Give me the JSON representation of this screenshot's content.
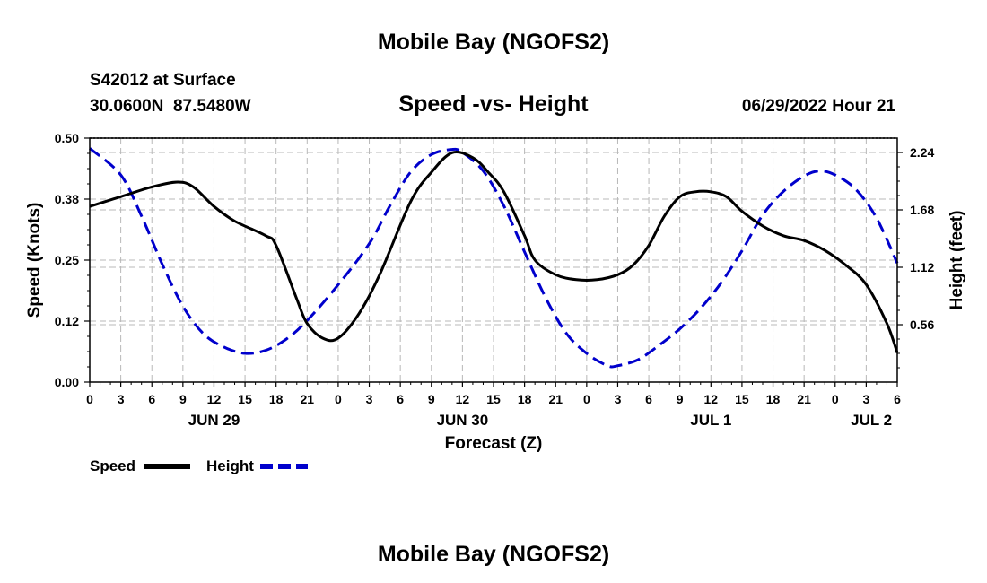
{
  "page": {
    "title": "Mobile Bay (NGOFS2)",
    "footer_title": "Mobile Bay (NGOFS2)",
    "station_line": "S42012 at Surface",
    "coords_line": "30.0600N  87.5480W",
    "subtitle": "Speed -vs- Height",
    "datetime": "06/29/2022 Hour 21"
  },
  "chart_data": {
    "type": "line",
    "title": "Speed -vs- Height",
    "xlabel": "Forecast (Z)",
    "ylabel_left": "Speed (Knots)",
    "ylabel_right": "Height (feet)",
    "x_unit": "hours since Jun 29 00Z",
    "xlim": [
      0,
      78
    ],
    "ylim_left": [
      0,
      0.5
    ],
    "ylim_right": [
      0,
      2.38
    ],
    "left_ticks": [
      {
        "value": 0,
        "label": "0.00"
      },
      {
        "value": 0.125,
        "label": "0.12"
      },
      {
        "value": 0.25,
        "label": "0.25"
      },
      {
        "value": 0.375,
        "label": "0.38"
      },
      {
        "value": 0.5,
        "label": "0.50"
      }
    ],
    "right_ticks": [
      {
        "value": 0.56,
        "label": "0.56"
      },
      {
        "value": 1.12,
        "label": "1.12"
      },
      {
        "value": 1.68,
        "label": "1.68"
      },
      {
        "value": 2.24,
        "label": "2.24"
      }
    ],
    "x_ticks": [
      {
        "value": 0,
        "label": "0"
      },
      {
        "value": 3,
        "label": "3"
      },
      {
        "value": 6,
        "label": "6"
      },
      {
        "value": 9,
        "label": "9"
      },
      {
        "value": 12,
        "label": "12"
      },
      {
        "value": 15,
        "label": "15"
      },
      {
        "value": 18,
        "label": "18"
      },
      {
        "value": 21,
        "label": "21"
      },
      {
        "value": 24,
        "label": "0"
      },
      {
        "value": 27,
        "label": "3"
      },
      {
        "value": 30,
        "label": "6"
      },
      {
        "value": 33,
        "label": "9"
      },
      {
        "value": 36,
        "label": "12"
      },
      {
        "value": 39,
        "label": "15"
      },
      {
        "value": 42,
        "label": "18"
      },
      {
        "value": 45,
        "label": "21"
      },
      {
        "value": 48,
        "label": "0"
      },
      {
        "value": 51,
        "label": "3"
      },
      {
        "value": 54,
        "label": "6"
      },
      {
        "value": 57,
        "label": "9"
      },
      {
        "value": 60,
        "label": "12"
      },
      {
        "value": 63,
        "label": "15"
      },
      {
        "value": 66,
        "label": "18"
      },
      {
        "value": 69,
        "label": "21"
      },
      {
        "value": 72,
        "label": "0"
      },
      {
        "value": 75,
        "label": "3"
      },
      {
        "value": 78,
        "label": "6"
      }
    ],
    "date_labels": [
      {
        "x": 12,
        "label": "JUN 29"
      },
      {
        "x": 36,
        "label": "JUN 30"
      },
      {
        "x": 60,
        "label": "JUL 1"
      },
      {
        "x": 75.5,
        "label": "JUL 2"
      }
    ],
    "legend": [
      {
        "name": "Speed",
        "color": "#000000"
      },
      {
        "name": "Height",
        "color": "#0000cc"
      }
    ],
    "series": [
      {
        "name": "Speed",
        "axis": "left",
        "color": "#000000",
        "style": "solid",
        "x": [
          0,
          3,
          6,
          8.5,
          10,
          12,
          14,
          17,
          18,
          20,
          21,
          22.5,
          24,
          26,
          28,
          31,
          33,
          35,
          37,
          38.5,
          40,
          42,
          43,
          45,
          47,
          49,
          51,
          52.5,
          54,
          55.5,
          57,
          58.5,
          60,
          61.5,
          63,
          65,
          67,
          69,
          71,
          73,
          75,
          77,
          78
        ],
        "values": [
          0.36,
          0.38,
          0.4,
          0.41,
          0.4,
          0.36,
          0.33,
          0.3,
          0.28,
          0.17,
          0.12,
          0.09,
          0.09,
          0.14,
          0.22,
          0.37,
          0.43,
          0.47,
          0.46,
          0.43,
          0.39,
          0.3,
          0.25,
          0.22,
          0.21,
          0.21,
          0.22,
          0.24,
          0.28,
          0.34,
          0.38,
          0.39,
          0.39,
          0.38,
          0.35,
          0.32,
          0.3,
          0.29,
          0.27,
          0.24,
          0.2,
          0.12,
          0.06
        ]
      },
      {
        "name": "Height",
        "axis": "right",
        "color": "#0000cc",
        "style": "dashed",
        "x": [
          0,
          3,
          5,
          7,
          9,
          11,
          13,
          15,
          17,
          19,
          21,
          24,
          27,
          29,
          31,
          33,
          35,
          36,
          38,
          40,
          42,
          44,
          46,
          48,
          50,
          51,
          53,
          55,
          57,
          59,
          61,
          63,
          65,
          67,
          69,
          70.5,
          72,
          74,
          76,
          78
        ],
        "values": [
          2.28,
          2.02,
          1.62,
          1.15,
          0.74,
          0.47,
          0.34,
          0.28,
          0.31,
          0.42,
          0.6,
          0.95,
          1.35,
          1.72,
          2.05,
          2.22,
          2.27,
          2.24,
          2.06,
          1.72,
          1.27,
          0.83,
          0.48,
          0.28,
          0.16,
          0.16,
          0.22,
          0.36,
          0.52,
          0.72,
          0.97,
          1.28,
          1.63,
          1.86,
          2.01,
          2.06,
          2.02,
          1.88,
          1.6,
          1.16
        ]
      }
    ]
  }
}
